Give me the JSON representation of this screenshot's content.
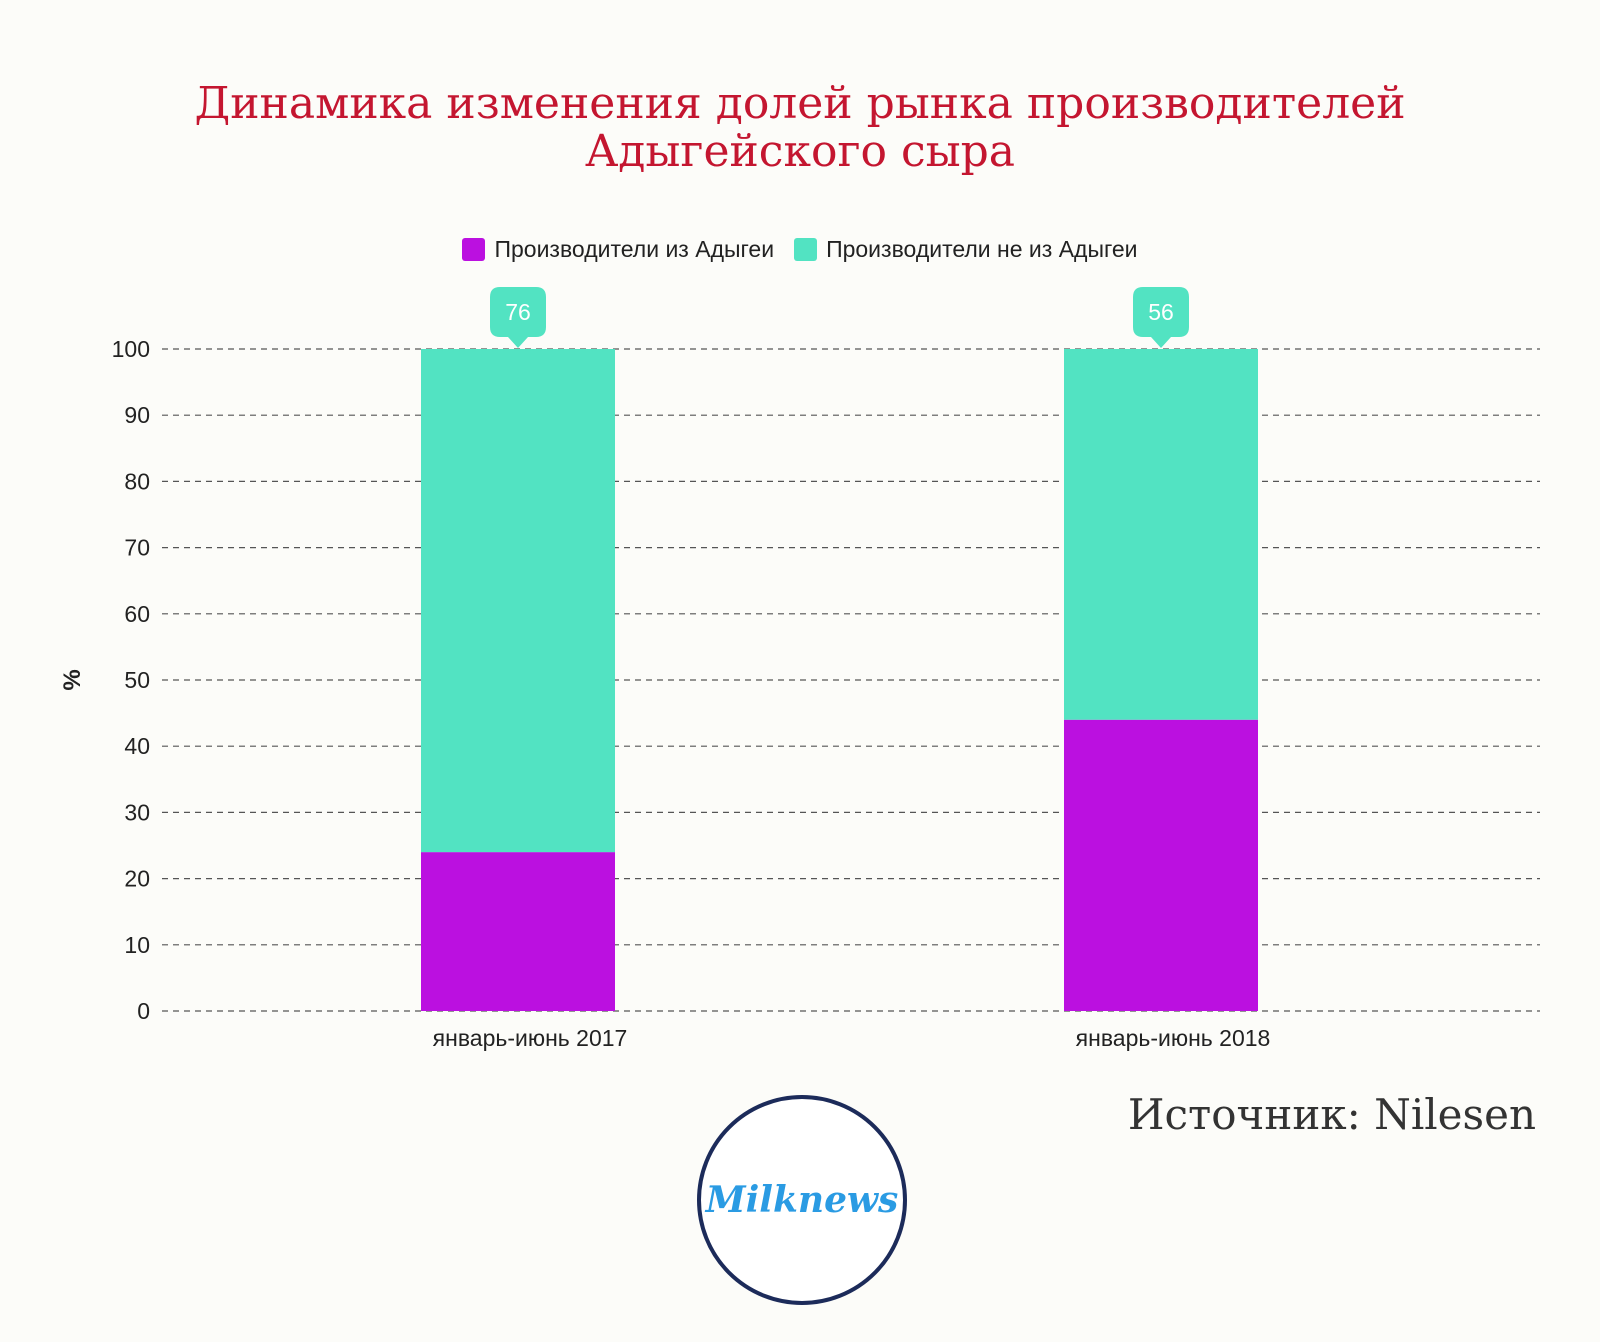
{
  "chart_data": {
    "type": "bar",
    "stacked": true,
    "title_line1": "Динамика изменения долей рынка производителей",
    "title_line2": "Адыгейского сыра",
    "categories": [
      "январь-июнь 2017",
      "январь-июнь 2018"
    ],
    "series": [
      {
        "name": "Производители из Адыгеи",
        "color": "#bb10e0",
        "values": [
          24,
          44
        ]
      },
      {
        "name": "Производители не из Адыгеи",
        "color": "#52e3c2",
        "values": [
          76,
          56
        ]
      }
    ],
    "ylabel": "%",
    "ylim": [
      0,
      100
    ],
    "yticks": [
      "0",
      "10",
      "20",
      "30",
      "40",
      "50",
      "60",
      "70",
      "80",
      "90",
      "100"
    ],
    "grid": true,
    "legend_position": "top"
  },
  "source_text": "Источник: Nilesen",
  "logo_text": "Milknews"
}
